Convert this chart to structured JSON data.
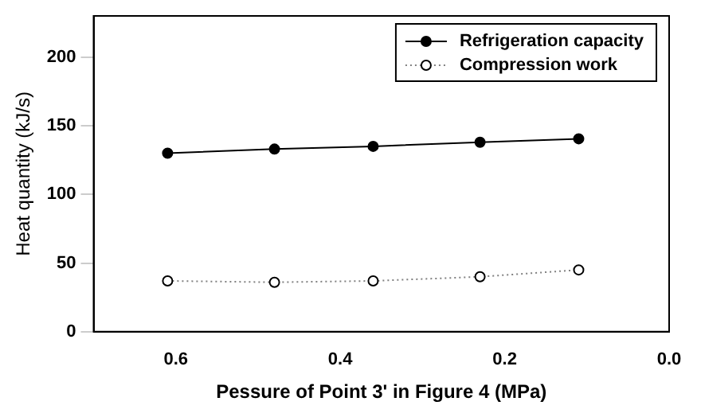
{
  "chart_data": {
    "type": "line",
    "xlabel": "Pessure of Point 3' in Figure 4 (MPa)",
    "ylabel": "Heat quantity (kJ/s)",
    "x": [
      0.61,
      0.48,
      0.36,
      0.23,
      0.11
    ],
    "series": [
      {
        "name": "Refrigeration capacity",
        "color": "#000000",
        "line_style": "solid",
        "values": [
          130,
          133,
          135,
          138,
          140.5
        ]
      },
      {
        "name": "Compression work",
        "color": "#808080",
        "line_style": "dotted",
        "values": [
          37,
          36,
          37,
          40,
          45
        ]
      }
    ],
    "xlim": [
      0.7,
      0.0
    ],
    "xticks": [
      {
        "value": 0.6,
        "label": "0.6"
      },
      {
        "value": 0.4,
        "label": "0.4"
      },
      {
        "value": 0.2,
        "label": "0.2"
      },
      {
        "value": 0,
        "label": "0.0"
      }
    ],
    "ylim": [
      0,
      230
    ],
    "yticks": [
      0,
      50,
      100,
      150,
      200
    ],
    "grid": false,
    "legend": "top right",
    "marker": "circle"
  }
}
